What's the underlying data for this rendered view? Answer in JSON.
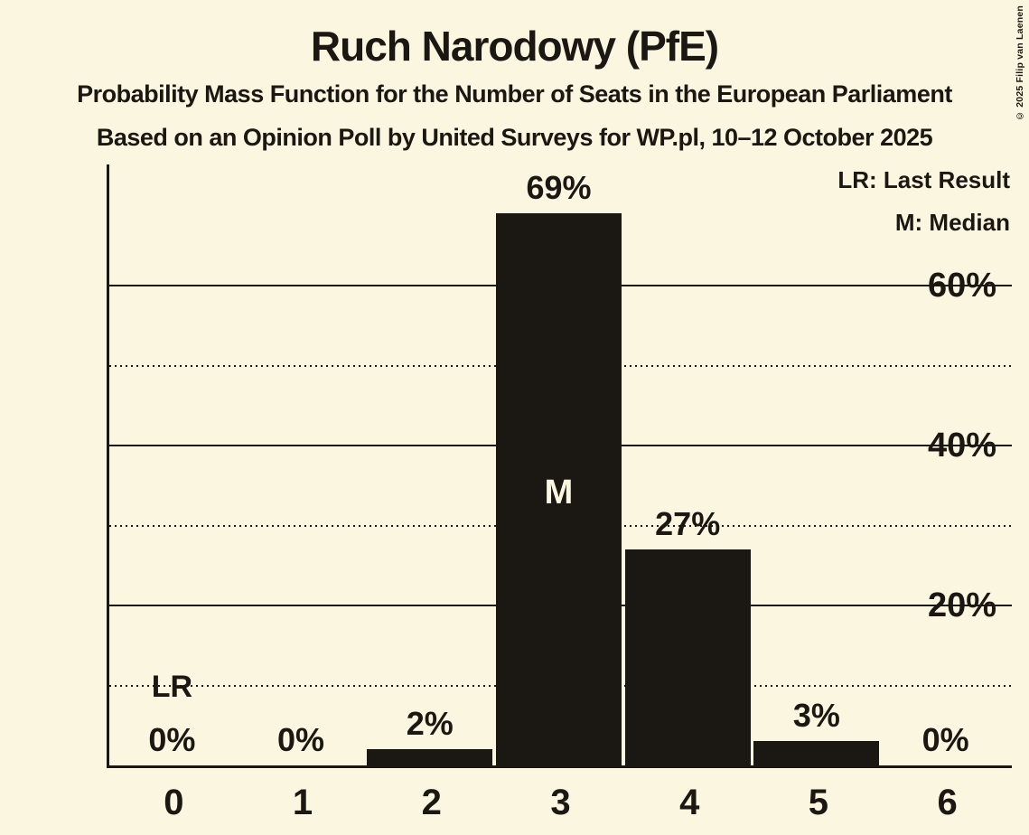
{
  "header": {
    "title": "Ruch Narodowy (PfE)",
    "subtitle_line1": "Probability Mass Function for the Number of Seats in the European Parliament",
    "subtitle_line2": "Based on an Opinion Poll by United Surveys for WP.pl, 10–12 October 2025"
  },
  "legend": {
    "lr_label": "LR: Last Result",
    "m_label": "M: Median"
  },
  "copyright": "© 2025 Filip van Laenen",
  "colors": {
    "background": "#FBF6DF",
    "ink": "#1B1712",
    "median_text": "#FBF6DF"
  },
  "chart_data": {
    "type": "bar",
    "categories": [
      "0",
      "1",
      "2",
      "3",
      "4",
      "5",
      "6"
    ],
    "values": [
      0,
      0,
      2,
      69,
      27,
      3,
      0
    ],
    "bar_labels": [
      "0%",
      "0%",
      "2%",
      "69%",
      "27%",
      "3%",
      "0%"
    ],
    "title": "Ruch Narodowy (PfE)",
    "xlabel": "",
    "ylabel": "",
    "ylim": [
      0,
      75
    ],
    "grid": "horizontal",
    "legend_position": "top-right",
    "solid_gridlines": [
      20,
      40,
      60
    ],
    "dotted_gridlines": [
      10,
      30,
      50
    ],
    "yticks": [
      {
        "value": 20,
        "label": "20%"
      },
      {
        "value": 40,
        "label": "40%"
      },
      {
        "value": 60,
        "label": "60%"
      }
    ],
    "markers": {
      "last_result": {
        "category": "0",
        "label": "LR"
      },
      "median": {
        "category": "3",
        "label": "M"
      }
    }
  }
}
